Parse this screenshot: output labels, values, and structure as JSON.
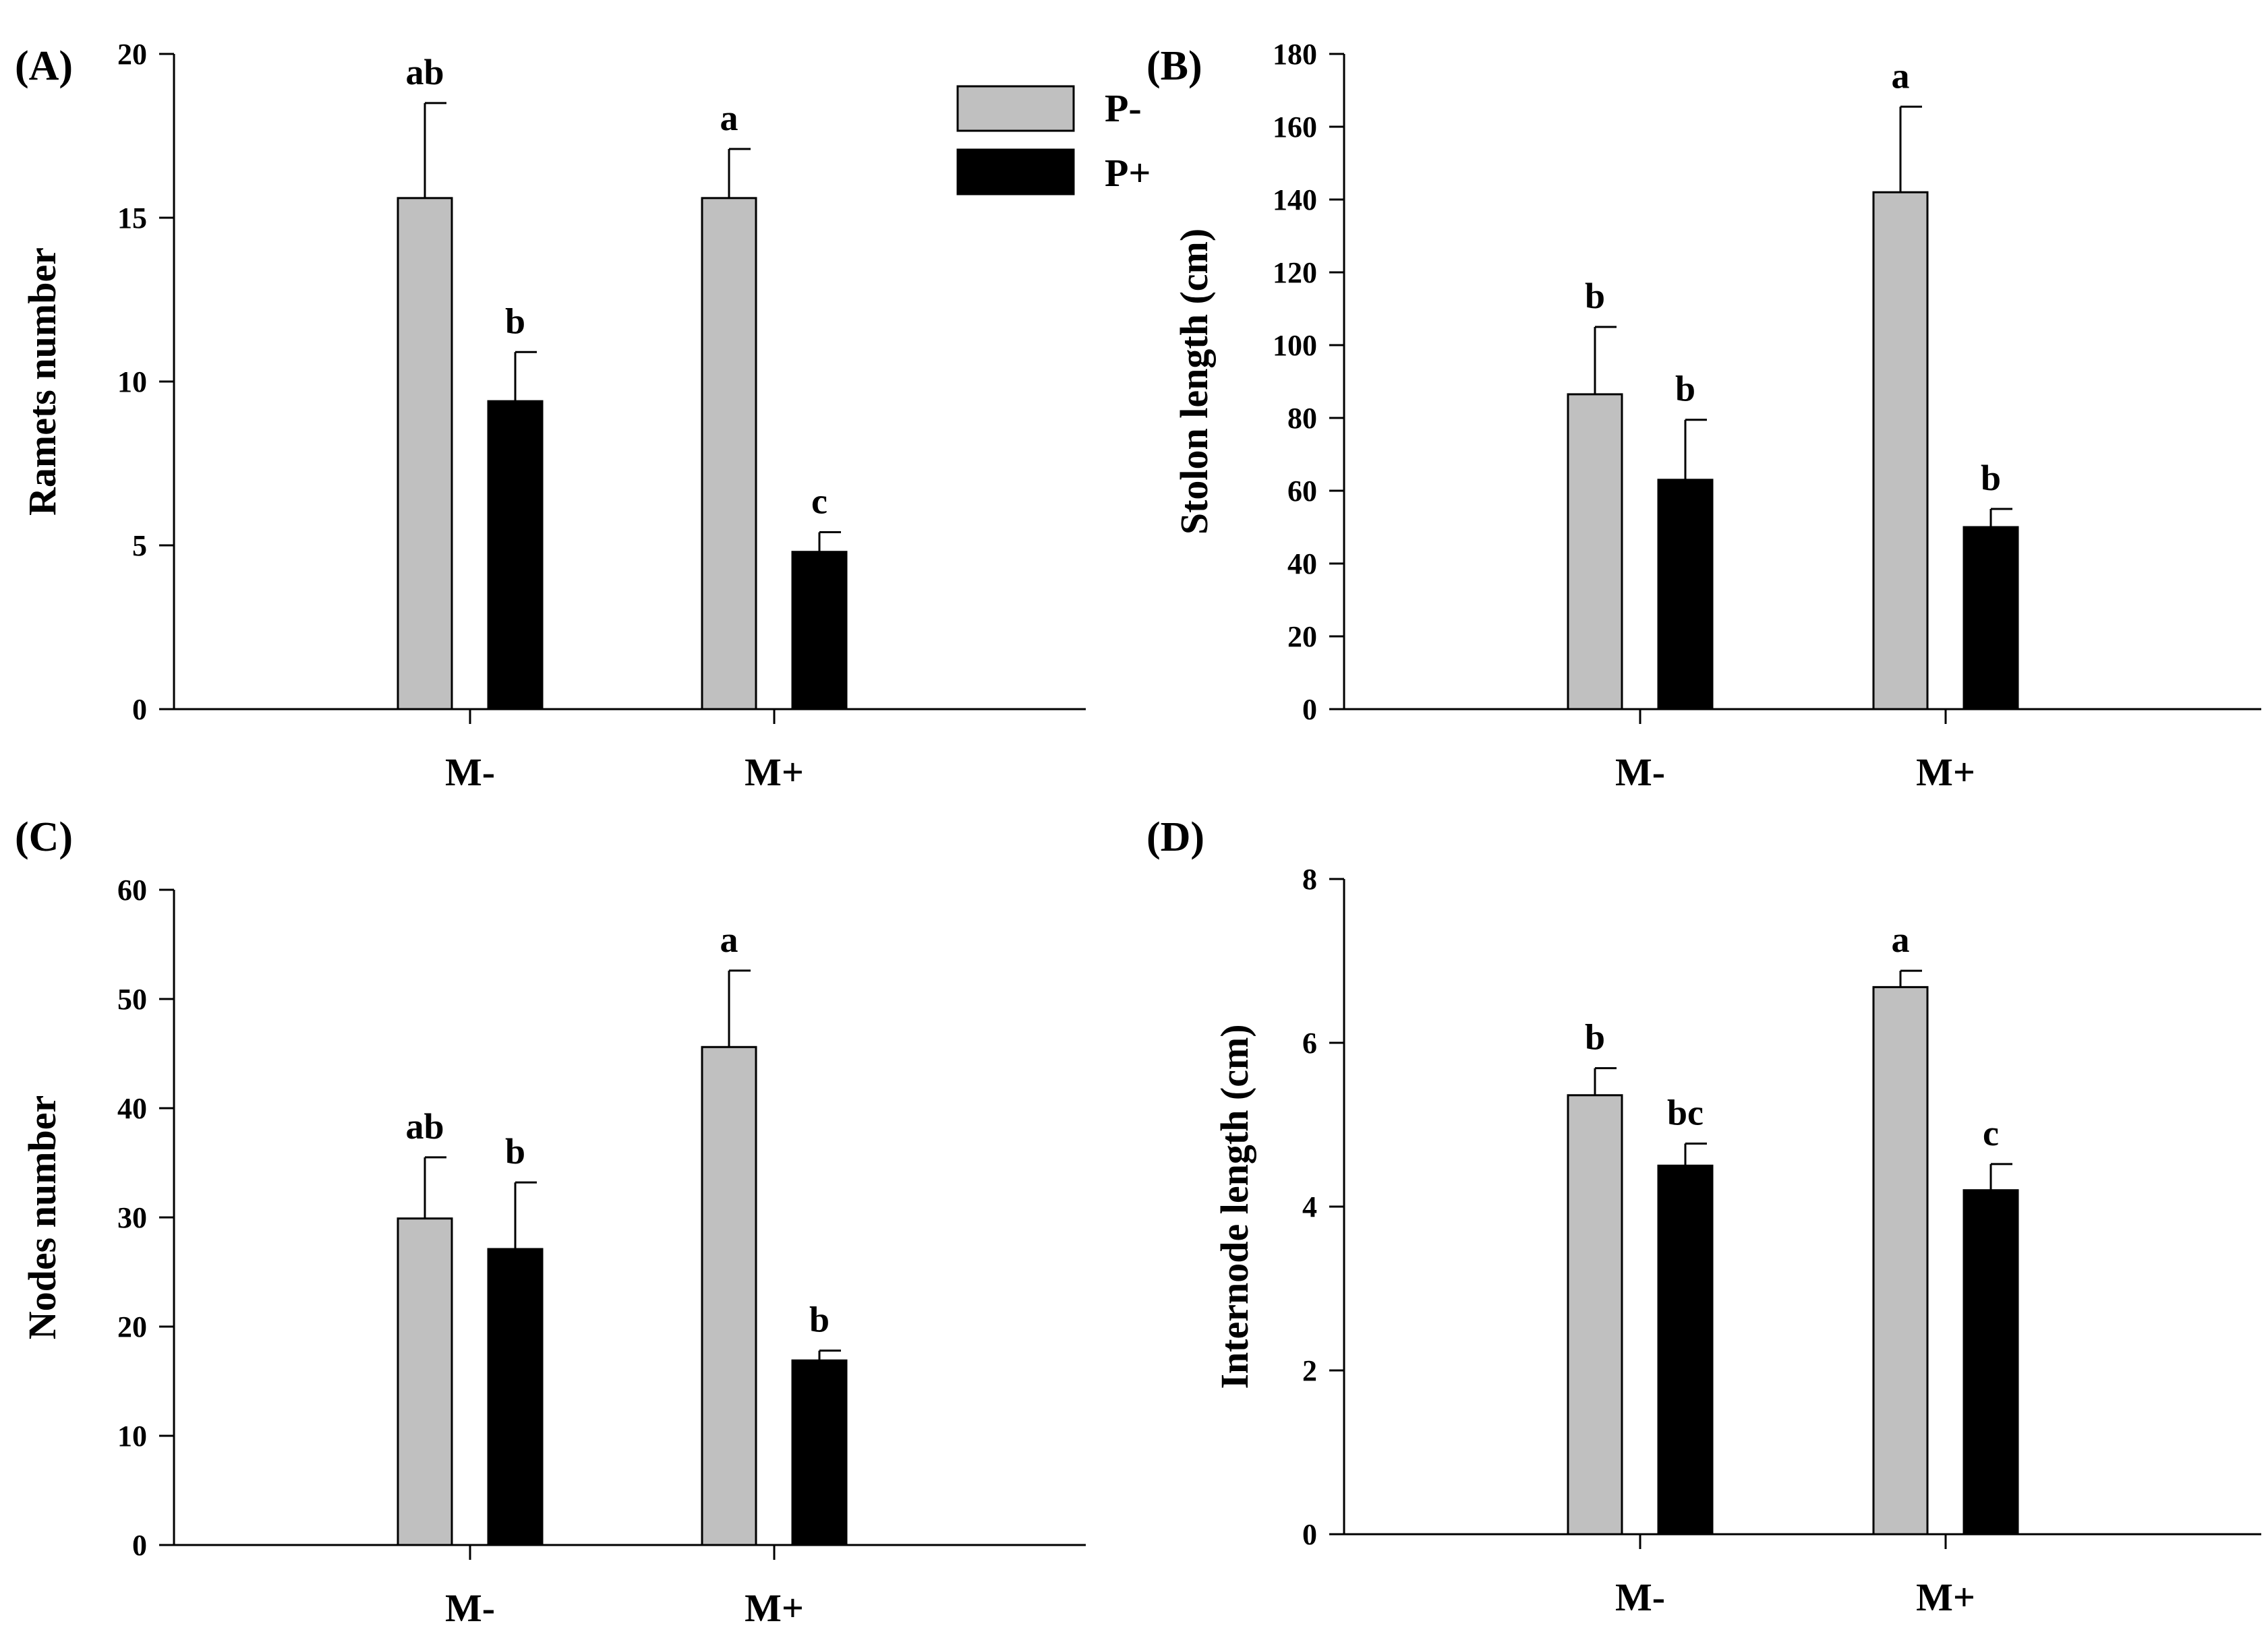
{
  "figure": {
    "legend": [
      {
        "label": "P-",
        "color": "#c0c0c0"
      },
      {
        "label": "P+",
        "color": "#000000"
      }
    ]
  },
  "chart_data": [
    {
      "panel": "(A)",
      "type": "bar",
      "categories": [
        "M-",
        "M+"
      ],
      "series": [
        {
          "name": "P-",
          "color": "#c0c0c0",
          "values": [
            15.6,
            15.6
          ],
          "errors": [
            2.9,
            1.5
          ]
        },
        {
          "name": "P+",
          "color": "#000000",
          "values": [
            9.4,
            4.8
          ],
          "errors": [
            1.5,
            0.6
          ]
        }
      ],
      "letters": [
        [
          "ab",
          "a"
        ],
        [
          "b",
          "c"
        ]
      ],
      "ylabel": "Ramets number",
      "ylim": [
        0,
        20
      ],
      "yticks": [
        0,
        5,
        10,
        15,
        20
      ],
      "grid": false,
      "legend": "top-right"
    },
    {
      "panel": "(B)",
      "type": "bar",
      "categories": [
        "M-",
        "M+"
      ],
      "series": [
        {
          "name": "P-",
          "color": "#c0c0c0",
          "values": [
            86.5,
            142.0
          ],
          "errors": [
            18.5,
            23.5
          ]
        },
        {
          "name": "P+",
          "color": "#000000",
          "values": [
            63.0,
            50.0
          ],
          "errors": [
            16.5,
            5.0
          ]
        }
      ],
      "letters": [
        [
          "b",
          "a"
        ],
        [
          "b",
          "b"
        ]
      ],
      "ylabel": "Stolon length (cm)",
      "ylim": [
        0,
        180
      ],
      "yticks": [
        0,
        20,
        40,
        60,
        80,
        100,
        120,
        140,
        160,
        180
      ],
      "grid": false
    },
    {
      "panel": "(C)",
      "type": "bar",
      "categories": [
        "M-",
        "M+"
      ],
      "series": [
        {
          "name": "P-",
          "color": "#c0c0c0",
          "values": [
            29.9,
            45.6
          ],
          "errors": [
            5.6,
            7.0
          ]
        },
        {
          "name": "P+",
          "color": "#000000",
          "values": [
            27.1,
            16.9
          ],
          "errors": [
            6.1,
            0.9
          ]
        }
      ],
      "letters": [
        [
          "ab",
          "a"
        ],
        [
          "b",
          "b"
        ]
      ],
      "ylabel": "Nodes number",
      "ylim": [
        0,
        60
      ],
      "yticks": [
        0,
        10,
        20,
        30,
        40,
        50,
        60
      ],
      "grid": false
    },
    {
      "panel": "(D)",
      "type": "bar",
      "categories": [
        "M-",
        "M+"
      ],
      "series": [
        {
          "name": "P-",
          "color": "#c0c0c0",
          "values": [
            5.36,
            6.68
          ],
          "errors": [
            0.33,
            0.2
          ]
        },
        {
          "name": "P+",
          "color": "#000000",
          "values": [
            4.5,
            4.2
          ],
          "errors": [
            0.27,
            0.32
          ]
        }
      ],
      "letters": [
        [
          "b",
          "a"
        ],
        [
          "bc",
          "c"
        ]
      ],
      "ylabel": "Internode length (cm)",
      "ylim": [
        0,
        8
      ],
      "yticks": [
        0,
        2,
        4,
        6,
        8
      ],
      "grid": false
    }
  ]
}
